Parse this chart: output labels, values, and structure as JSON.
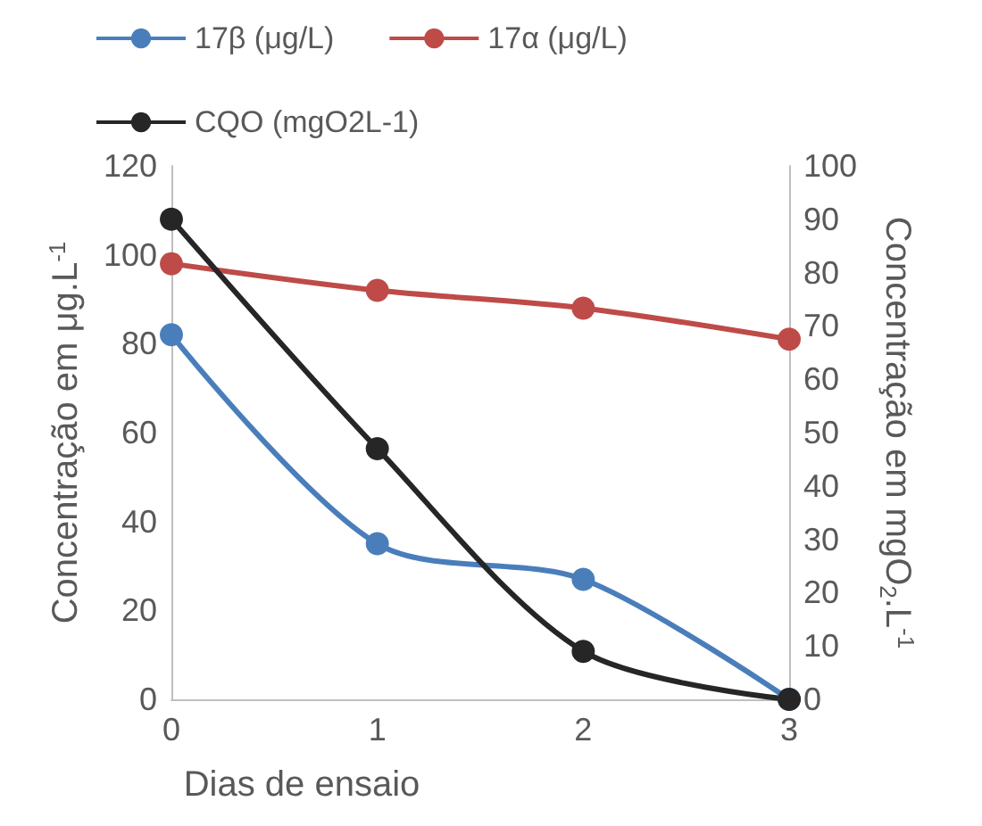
{
  "chart_data": {
    "type": "line",
    "xlabel": "Dias de ensaio",
    "ylabel": "Concentração em μg.L$^{-1}$",
    "y2label": "Concentração em mgO$_{2}$.L$^{-1}$",
    "categories": [
      "0",
      "1",
      "2",
      "3"
    ],
    "series": [
      {
        "name": "17β (μg/L)",
        "color": "#4a7ebb",
        "values": [
          82,
          35,
          27,
          0
        ]
      },
      {
        "name": "17α (μg/L)",
        "color": "#be4b48",
        "values": [
          98,
          92,
          88,
          81
        ]
      },
      {
        "name": "CQO (mgO2L-1)",
        "color": "#262626",
        "values": [
          90,
          47,
          9,
          0
        ],
        "axis": "y2"
      }
    ],
    "ylim": [
      0,
      120
    ],
    "yticks": [
      0,
      20,
      40,
      60,
      80,
      100,
      120
    ],
    "y2lim": [
      0,
      100
    ],
    "y2ticks": [
      0,
      10,
      20,
      30,
      40,
      50,
      60,
      70,
      80,
      90,
      100
    ],
    "grid": false,
    "legend": "top",
    "marker": "circle",
    "line_style": "solid"
  }
}
